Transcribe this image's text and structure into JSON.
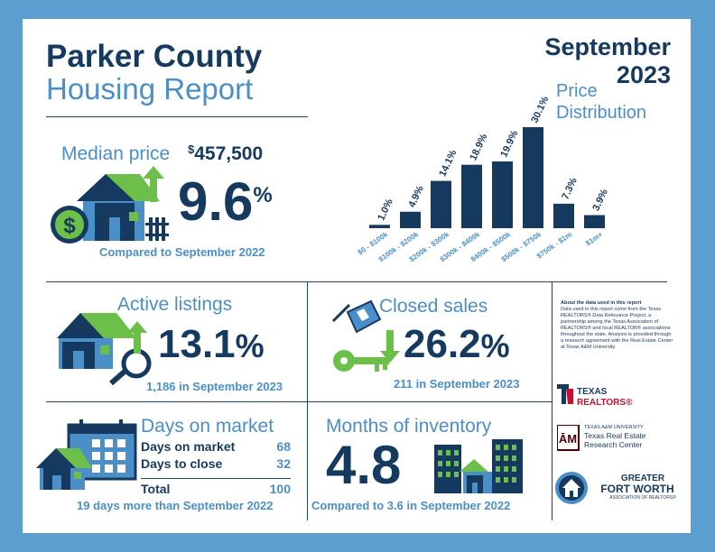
{
  "header": {
    "title_line1": "Parker County",
    "title_line2": "Housing Report",
    "month": "September",
    "year": "2023"
  },
  "median_price": {
    "label": "Median price",
    "currency": "$",
    "value": "457,500",
    "change_number": "9.6",
    "change_unit": "%",
    "comparison": "Compared to September 2022"
  },
  "price_distribution": {
    "title_line1": "Price",
    "title_line2": "Distribution"
  },
  "chart_data": {
    "type": "bar",
    "title": "Price Distribution",
    "categories": [
      "$0 - $100k",
      "$100k - $200k",
      "$200k - $300k",
      "$300k - $400k",
      "$400k - $500k",
      "$500k - $750k",
      "$750k - $1m",
      "$1m+"
    ],
    "values": [
      1.0,
      4.9,
      14.1,
      18.9,
      19.9,
      30.1,
      7.3,
      3.9
    ],
    "value_labels": [
      "1.0%",
      "4.9%",
      "14.1%",
      "18.9%",
      "19.9%",
      "30.1%",
      "7.3%",
      "3.9%"
    ],
    "ylim": [
      0,
      30.1
    ],
    "grid": false,
    "color": "#163a5f"
  },
  "active_listings": {
    "label": "Active listings",
    "change_number": "13.1",
    "change_unit": "%",
    "detail": "1,186 in September 2023"
  },
  "closed_sales": {
    "label": "Closed sales",
    "change_number": "26.2",
    "change_unit": "%",
    "detail": "211 in September 2023"
  },
  "days_on_market": {
    "label": "Days on market",
    "rows": [
      {
        "label": "Days on market",
        "value": "68"
      },
      {
        "label": "Days to close",
        "value": "32"
      }
    ],
    "total_label": "Total",
    "total_value": "100",
    "comparison": "19 days more than September 2022"
  },
  "months_of_inventory": {
    "label": "Months of inventory",
    "value": "4.8",
    "comparison": "Compared to 3.6 in September 2022"
  },
  "about": {
    "heading": "About the data used in this report",
    "body": "Data used in this report come from the Texas REALTORS® Data Relevance Project, a partnership among the Texas Association of REALTORS® and local REALTOR® associations throughout the state. Analysis is provided through a research agreement with the Real Estate Center at Texas A&M University."
  },
  "logos": {
    "texas_realtors": "TEXAS REALTORS®",
    "tamu_line1": "TEXAS A&M UNIVERSITY",
    "tamu_line2": "Texas Real Estate",
    "tamu_line3": "Research Center",
    "gfw_line1": "GREATER",
    "gfw_line2": "FORT WORTH",
    "gfw_line3": "ASSOCIATION OF REALTORS®"
  },
  "colors": {
    "navy": "#163a5f",
    "blue": "#4a8fc7",
    "green": "#6cc04a",
    "frame": "#5b9fd1",
    "texas_red": "#c8102e",
    "tamu_maroon": "#500000"
  }
}
